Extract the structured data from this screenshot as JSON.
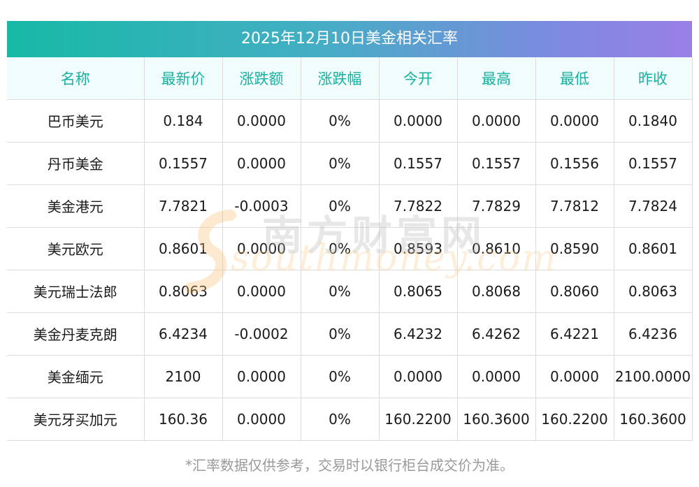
{
  "title": "2025年12月10日美金相关汇率",
  "headers": [
    "名称",
    "最新价",
    "涨跌额",
    "涨跌幅",
    "今开",
    "最高",
    "最低",
    "昨收"
  ],
  "rows": [
    [
      "巴币美元",
      "0.184",
      "0.0000",
      "0%",
      "0.0000",
      "0.0000",
      "0.0000",
      "0.1840"
    ],
    [
      "丹币美金",
      "0.1557",
      "0.0000",
      "0%",
      "0.1557",
      "0.1557",
      "0.1556",
      "0.1557"
    ],
    [
      "美金港元",
      "7.7821",
      "-0.0003",
      "0%",
      "7.7822",
      "7.7829",
      "7.7812",
      "7.7824"
    ],
    [
      "美元欧元",
      "0.8601",
      "0.0000",
      "0%",
      "0.8593",
      "0.8610",
      "0.8590",
      "0.8601"
    ],
    [
      "美元瑞士法郎",
      "0.8063",
      "0.0000",
      "0%",
      "0.8065",
      "0.8068",
      "0.8060",
      "0.8063"
    ],
    [
      "美金丹麦克朗",
      "6.4234",
      "-0.0002",
      "0%",
      "6.4232",
      "6.4262",
      "6.4221",
      "6.4236"
    ],
    [
      "美金缅元",
      "2100",
      "0.0000",
      "0%",
      "0.0000",
      "0.0000",
      "0.0000",
      "2100.0000"
    ],
    [
      "美元牙买加元",
      "160.36",
      "0.0000",
      "0%",
      "160.2200",
      "160.3600",
      "160.2200",
      "160.3600"
    ]
  ],
  "watermark": {
    "cn": "南方财富网",
    "en": "southmoney.com"
  },
  "footnote": "*汇率数据仅供参考，交易时以银行柜台成交价为准。",
  "colors": {
    "header_text": "#18b0a0",
    "header_bg": "#f1fdfc",
    "title_gradient_start": "#17b9a6",
    "title_gradient_end": "#9a7fe6",
    "footnote_text": "#9a9a9a"
  }
}
